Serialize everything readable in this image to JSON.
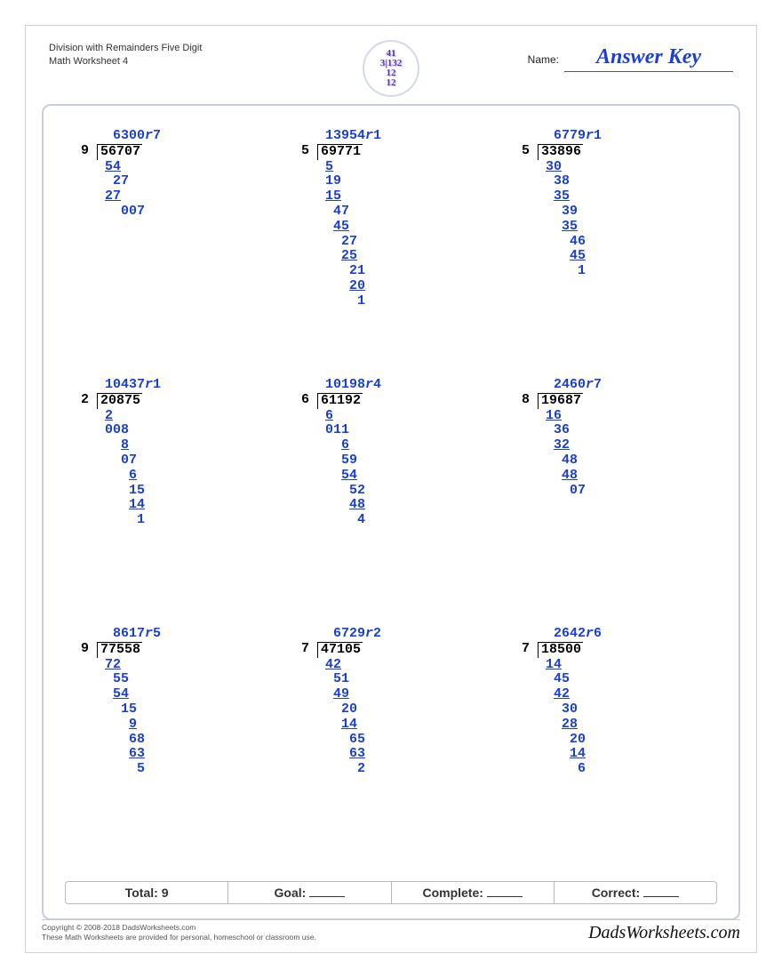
{
  "header": {
    "title_line1": "Division with Remainders Five Digit",
    "title_line2": "Math Worksheet 4",
    "name_label": "Name:",
    "answer_key": "Answer Key",
    "logo_text": "41\n3132\n12\n12"
  },
  "colors": {
    "answer": "#1a3fd6",
    "frame": "#c8cde0",
    "text": "#000000",
    "page_border": "#d0d0d0"
  },
  "stats": {
    "total_label": "Total:",
    "total_value": "9",
    "goal_label": "Goal:",
    "complete_label": "Complete:",
    "correct_label": "Correct:"
  },
  "footer": {
    "copyright": "Copyright © 2008-2018 DadsWorksheets.com",
    "note": "These Math Worksheets are provided for personal, homeschool or classroom use.",
    "brand": "DadsWorksheets.com"
  },
  "problems": [
    {
      "divisor": "9",
      "dividend": "56707",
      "quotient": "6300",
      "remainder": "7",
      "work": [
        " 54 U",
        "  27 ",
        " 27 U",
        "   007"
      ]
    },
    {
      "divisor": "5",
      "dividend": "69771",
      "quotient": "13954",
      "remainder": "1",
      "work": [
        " 5 U",
        " 19",
        " 15 U",
        "  47",
        "  45 U",
        "   27",
        "   25 U",
        "    21",
        "    20 U",
        "     1"
      ]
    },
    {
      "divisor": "5",
      "dividend": "33896",
      "quotient": "6779",
      "remainder": "1",
      "work": [
        " 30 U",
        "  38",
        "  35 U",
        "   39",
        "   35 U",
        "    46",
        "    45 U",
        "     1"
      ]
    },
    {
      "divisor": "2",
      "dividend": "20875",
      "quotient": "10437",
      "remainder": "1",
      "work": [
        " 2 U",
        " 008",
        "   8 U",
        "   07",
        "    6 U",
        "    15",
        "    14 U",
        "     1"
      ]
    },
    {
      "divisor": "6",
      "dividend": "61192",
      "quotient": "10198",
      "remainder": "4",
      "work": [
        " 6 U",
        " 011",
        "   6 U",
        "   59",
        "   54 U",
        "    52",
        "    48 U",
        "     4"
      ]
    },
    {
      "divisor": "8",
      "dividend": "19687",
      "quotient": "2460",
      "remainder": "7",
      "work": [
        " 16 U",
        "  36",
        "  32 U",
        "   48",
        "   48 U",
        "    07"
      ]
    },
    {
      "divisor": "9",
      "dividend": "77558",
      "quotient": "8617",
      "remainder": "5",
      "work": [
        " 72 U",
        "  55",
        "  54 U",
        "   15",
        "    9 U",
        "    68",
        "    63 U",
        "     5"
      ]
    },
    {
      "divisor": "7",
      "dividend": "47105",
      "quotient": "6729",
      "remainder": "2",
      "work": [
        " 42 U",
        "  51",
        "  49 U",
        "   20",
        "   14 U",
        "    65",
        "    63 U",
        "     2"
      ]
    },
    {
      "divisor": "7",
      "dividend": "18500",
      "quotient": "2642",
      "remainder": "6",
      "work": [
        " 14 U",
        "  45",
        "  42 U",
        "   30",
        "   28 U",
        "    20",
        "    14 U",
        "     6"
      ]
    }
  ]
}
